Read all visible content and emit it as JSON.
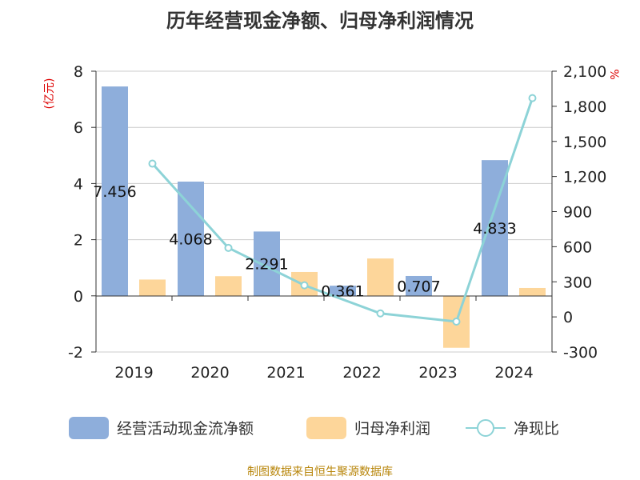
{
  "chart_data": {
    "type": "bar",
    "title": "历年经营现金净额、归母净利润情况",
    "categories": [
      "2019",
      "2020",
      "2021",
      "2022",
      "2023",
      "2024"
    ],
    "series": [
      {
        "name": "经营活动现金流净额",
        "type": "bar",
        "axis": "left",
        "color": "#8eaedb",
        "values": [
          7.456,
          4.068,
          2.291,
          0.361,
          0.707,
          4.833
        ],
        "labels": [
          "7.456",
          "4.068",
          "2.291",
          "0.361",
          "0.707",
          "4.833"
        ]
      },
      {
        "name": "归母净利润",
        "type": "bar",
        "axis": "left",
        "color": "#fdd69a",
        "values": [
          0.58,
          0.7,
          0.85,
          1.33,
          -1.85,
          0.28
        ]
      },
      {
        "name": "净现比",
        "type": "line",
        "axis": "right",
        "color": "#8dd3d7",
        "values": [
          1310,
          590,
          270,
          30,
          -40,
          1870
        ]
      }
    ],
    "y_left": {
      "unit": "(亿元)",
      "min": -2,
      "max": 8,
      "ticks": [
        -2,
        0,
        2,
        4,
        6,
        8
      ]
    },
    "y_right": {
      "unit": "%",
      "min": -300,
      "max": 2100,
      "ticks": [
        -300,
        0,
        300,
        600,
        900,
        1200,
        1500,
        1800,
        2100
      ],
      "tick_labels": [
        "-300",
        "0",
        "300",
        "600",
        "900",
        "1,200",
        "1,500",
        "1,800",
        "2,100"
      ]
    },
    "grid": true,
    "legend_position": "bottom"
  },
  "source": "制图数据来自恒生聚源数据库"
}
